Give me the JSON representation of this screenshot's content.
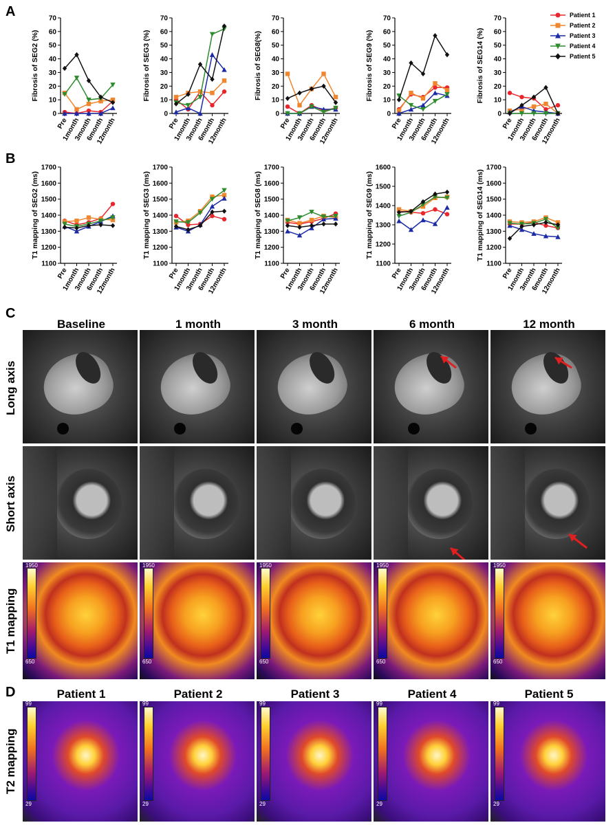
{
  "panels": {
    "a": "A",
    "b": "B",
    "c": "C",
    "d": "D"
  },
  "legend": [
    {
      "name": "Patient 1",
      "color": "#e8262b",
      "marker": "circle"
    },
    {
      "name": "Patient 2",
      "color": "#f0862d",
      "marker": "square"
    },
    {
      "name": "Patient 3",
      "color": "#1c2aa6",
      "marker": "triangle-up"
    },
    {
      "name": "Patient 4",
      "color": "#2e8b2e",
      "marker": "triangle-down"
    },
    {
      "name": "Patient 5",
      "color": "#111111",
      "marker": "diamond"
    }
  ],
  "chart_data": [
    {
      "type": "line",
      "panel": "A",
      "ylabel": "Fibrosis of SEG2 (%)",
      "categories": [
        "Pre",
        "1month",
        "3month",
        "6month",
        "12month"
      ],
      "ylim": [
        0,
        70
      ],
      "yticks": [
        0,
        10,
        20,
        30,
        40,
        50,
        60,
        70
      ],
      "series": [
        {
          "name": "Patient 1",
          "values": [
            1,
            0,
            2,
            1,
            9
          ]
        },
        {
          "name": "Patient 2",
          "values": [
            15,
            3,
            7,
            9,
            10
          ]
        },
        {
          "name": "Patient 3",
          "values": [
            0,
            0,
            0,
            0,
            4
          ]
        },
        {
          "name": "Patient 4",
          "values": [
            14,
            26,
            10,
            11,
            21
          ]
        },
        {
          "name": "Patient 5",
          "values": [
            33,
            43,
            24,
            12,
            8
          ]
        }
      ]
    },
    {
      "type": "line",
      "panel": "A",
      "ylabel": "Fibrosis of SEG3 (%)",
      "categories": [
        "Pre",
        "1month",
        "3month",
        "6month",
        "12month"
      ],
      "ylim": [
        0,
        70
      ],
      "yticks": [
        0,
        10,
        20,
        30,
        40,
        50,
        60,
        70
      ],
      "series": [
        {
          "name": "Patient 1",
          "values": [
            10,
            3,
            16,
            6,
            16
          ]
        },
        {
          "name": "Patient 2",
          "values": [
            12,
            15,
            16,
            15,
            24
          ]
        },
        {
          "name": "Patient 3",
          "values": [
            1,
            4,
            0,
            43,
            32
          ]
        },
        {
          "name": "Patient 4",
          "values": [
            8,
            6,
            12,
            58,
            62
          ]
        },
        {
          "name": "Patient 5",
          "values": [
            7,
            14,
            36,
            25,
            64
          ]
        }
      ]
    },
    {
      "type": "line",
      "panel": "A",
      "ylabel": "Fibrosis of SEG8(%)",
      "categories": [
        "Pre",
        "1month",
        "3month",
        "6month",
        "12month"
      ],
      "ylim": [
        0,
        70
      ],
      "yticks": [
        0,
        10,
        20,
        30,
        40,
        50,
        60,
        70
      ],
      "series": [
        {
          "name": "Patient 1",
          "values": [
            5,
            0,
            6,
            2,
            4
          ]
        },
        {
          "name": "Patient 2",
          "values": [
            29,
            6,
            18,
            29,
            12
          ]
        },
        {
          "name": "Patient 3",
          "values": [
            0,
            0,
            5,
            3,
            3
          ]
        },
        {
          "name": "Patient 4",
          "values": [
            0,
            0,
            5,
            1,
            4
          ]
        },
        {
          "name": "Patient 5",
          "values": [
            11,
            15,
            18,
            20,
            8
          ]
        }
      ]
    },
    {
      "type": "line",
      "panel": "A",
      "ylabel": "Fibrosis of SEG9 (%)",
      "categories": [
        "Pre",
        "1month",
        "3month",
        "6month",
        "12month"
      ],
      "ylim": [
        0,
        70
      ],
      "yticks": [
        0,
        10,
        20,
        30,
        40,
        50,
        60,
        70
      ],
      "series": [
        {
          "name": "Patient 1",
          "values": [
            3,
            14,
            12,
            19,
            19
          ]
        },
        {
          "name": "Patient 2",
          "values": [
            2,
            15,
            11,
            22,
            17
          ]
        },
        {
          "name": "Patient 3",
          "values": [
            0,
            3,
            6,
            15,
            13
          ]
        },
        {
          "name": "Patient 4",
          "values": [
            13,
            6,
            3,
            9,
            14
          ]
        },
        {
          "name": "Patient 5",
          "values": [
            10,
            37,
            29,
            57,
            43
          ]
        }
      ]
    },
    {
      "type": "line",
      "panel": "A",
      "ylabel": "Fibrosis of SEG14 (%)",
      "categories": [
        "Pre",
        "1month",
        "3month",
        "6month",
        "12month"
      ],
      "ylim": [
        0,
        70
      ],
      "yticks": [
        0,
        10,
        20,
        30,
        40,
        50,
        60,
        70
      ],
      "series": [
        {
          "name": "Patient 1",
          "values": [
            15,
            12,
            11,
            3,
            6
          ]
        },
        {
          "name": "Patient 2",
          "values": [
            2,
            3,
            5,
            7,
            0
          ]
        },
        {
          "name": "Patient 3",
          "values": [
            1,
            5,
            2,
            1,
            0
          ]
        },
        {
          "name": "Patient 4",
          "values": [
            0,
            0,
            0,
            0,
            0
          ]
        },
        {
          "name": "Patient 5",
          "values": [
            0,
            6,
            12,
            19,
            0
          ]
        }
      ]
    },
    {
      "type": "line",
      "panel": "B",
      "ylabel": "T1 mapping of SEG2 (ms)",
      "categories": [
        "Pre",
        "1month",
        "3month",
        "6month",
        "12month"
      ],
      "ylim": [
        1100,
        1700
      ],
      "yticks": [
        1100,
        1200,
        1300,
        1400,
        1500,
        1600,
        1700
      ],
      "series": [
        {
          "name": "Patient 1",
          "values": [
            1365,
            1340,
            1355,
            1380,
            1470
          ]
        },
        {
          "name": "Patient 2",
          "values": [
            1360,
            1365,
            1385,
            1375,
            1370
          ]
        },
        {
          "name": "Patient 3",
          "values": [
            1330,
            1300,
            1330,
            1360,
            1395
          ]
        },
        {
          "name": "Patient 4",
          "values": [
            1345,
            1330,
            1345,
            1365,
            1385
          ]
        },
        {
          "name": "Patient 5",
          "values": [
            1325,
            1320,
            1335,
            1340,
            1335
          ]
        }
      ]
    },
    {
      "type": "line",
      "panel": "B",
      "ylabel": "T1 mapping of SEG3 (ms)",
      "categories": [
        "Pre",
        "1month",
        "3month",
        "6month",
        "12month"
      ],
      "ylim": [
        1100,
        1700
      ],
      "yticks": [
        1100,
        1200,
        1300,
        1400,
        1500,
        1600,
        1700
      ],
      "series": [
        {
          "name": "Patient 1",
          "values": [
            1395,
            1340,
            1345,
            1395,
            1375
          ]
        },
        {
          "name": "Patient 2",
          "values": [
            1355,
            1365,
            1425,
            1515,
            1525
          ]
        },
        {
          "name": "Patient 3",
          "values": [
            1325,
            1300,
            1340,
            1455,
            1505
          ]
        },
        {
          "name": "Patient 4",
          "values": [
            1360,
            1355,
            1415,
            1500,
            1555
          ]
        },
        {
          "name": "Patient 5",
          "values": [
            1330,
            1310,
            1335,
            1420,
            1425
          ]
        }
      ]
    },
    {
      "type": "line",
      "panel": "B",
      "ylabel": "T1 mapping of SEG8 (ms)",
      "categories": [
        "Pre",
        "1month",
        "3month",
        "6month",
        "12month"
      ],
      "ylim": [
        1100,
        1700
      ],
      "yticks": [
        1100,
        1200,
        1300,
        1400,
        1500,
        1600,
        1700
      ],
      "series": [
        {
          "name": "Patient 1",
          "values": [
            1355,
            1345,
            1360,
            1380,
            1410
          ]
        },
        {
          "name": "Patient 2",
          "values": [
            1370,
            1350,
            1370,
            1395,
            1385
          ]
        },
        {
          "name": "Patient 3",
          "values": [
            1300,
            1275,
            1320,
            1375,
            1380
          ]
        },
        {
          "name": "Patient 4",
          "values": [
            1365,
            1385,
            1420,
            1390,
            1395
          ]
        },
        {
          "name": "Patient 5",
          "values": [
            1335,
            1325,
            1335,
            1345,
            1345
          ]
        }
      ]
    },
    {
      "type": "line",
      "panel": "B",
      "ylabel": "T1 mapping of SEG9 (ms)",
      "categories": [
        "Pre",
        "1month",
        "3month",
        "6month",
        "12month"
      ],
      "ylim": [
        1100,
        1600
      ],
      "yticks": [
        1100,
        1200,
        1300,
        1400,
        1500,
        1600
      ],
      "series": [
        {
          "name": "Patient 1",
          "values": [
            1370,
            1365,
            1360,
            1380,
            1355
          ]
        },
        {
          "name": "Patient 2",
          "values": [
            1380,
            1370,
            1395,
            1440,
            1445
          ]
        },
        {
          "name": "Patient 3",
          "values": [
            1320,
            1275,
            1325,
            1305,
            1390
          ]
        },
        {
          "name": "Patient 4",
          "values": [
            1345,
            1365,
            1405,
            1445,
            1440
          ]
        },
        {
          "name": "Patient 5",
          "values": [
            1365,
            1370,
            1420,
            1460,
            1470
          ]
        }
      ]
    },
    {
      "type": "line",
      "panel": "B",
      "ylabel": "T1 mapping of SEG14 (ms)",
      "categories": [
        "Pre",
        "1month",
        "3month",
        "6month",
        "12month"
      ],
      "ylim": [
        1100,
        1700
      ],
      "yticks": [
        1100,
        1200,
        1300,
        1400,
        1500,
        1600,
        1700
      ],
      "series": [
        {
          "name": "Patient 1",
          "values": [
            1345,
            1345,
            1355,
            1335,
            1320
          ]
        },
        {
          "name": "Patient 2",
          "values": [
            1360,
            1355,
            1360,
            1385,
            1355
          ]
        },
        {
          "name": "Patient 3",
          "values": [
            1335,
            1310,
            1285,
            1270,
            1265
          ]
        },
        {
          "name": "Patient 4",
          "values": [
            1350,
            1345,
            1350,
            1375,
            1320
          ]
        },
        {
          "name": "Patient 5",
          "values": [
            1255,
            1330,
            1340,
            1355,
            1340
          ]
        }
      ]
    }
  ],
  "sectionC": {
    "columns": [
      "Baseline",
      "1 month",
      "3 month",
      "6 month",
      "12 month"
    ],
    "rows": [
      "Long axis",
      "Short axis",
      "T1 mapping"
    ],
    "scale_max": "1950",
    "scale_min": "650"
  },
  "sectionD": {
    "columns": [
      "Patient 1",
      "Patient 2",
      "Patient 3",
      "Patient 4",
      "Patient 5"
    ],
    "row": "T2 mapping",
    "scale_max": "99",
    "scale_min": "29"
  }
}
